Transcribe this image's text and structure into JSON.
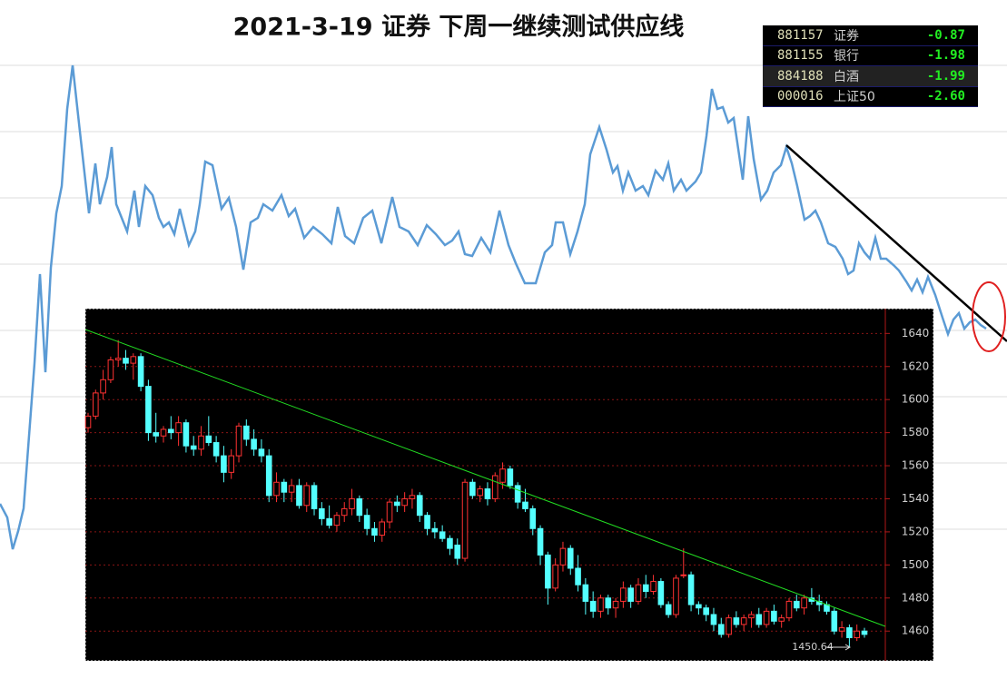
{
  "chart_data": [
    {
      "type": "line",
      "title": "2021-3-19 证券  下周一继续测试供应线",
      "color": "#5b9bd5",
      "xlim": [
        0,
        1109
      ],
      "ylim": [
        0,
        748
      ],
      "x": [
        0,
        8,
        14,
        20,
        26,
        32,
        38,
        44,
        50,
        56,
        62,
        68,
        74,
        80,
        88,
        98,
        105,
        110,
        118,
        123,
        128,
        140,
        148,
        153,
        160,
        168,
        175,
        180,
        186,
        192,
        198,
        208,
        215,
        220,
        226,
        234,
        244,
        252,
        260,
        268,
        276,
        284,
        290,
        300,
        310,
        318,
        325,
        335,
        345,
        355,
        365,
        372,
        380,
        390,
        400,
        410,
        420,
        432,
        440,
        450,
        460,
        470,
        480,
        490,
        498,
        505,
        512,
        520,
        530,
        540,
        550,
        560,
        568,
        578,
        590,
        600,
        608,
        612,
        620,
        628,
        636,
        644,
        650,
        660,
        668,
        675,
        680,
        686,
        692,
        700,
        708,
        714,
        722,
        730,
        736,
        742,
        750,
        756,
        766,
        772,
        778,
        784,
        790,
        796,
        802,
        808,
        818,
        824,
        830,
        838,
        845,
        852,
        860,
        866,
        872,
        878,
        886,
        892,
        898,
        904,
        912,
        920,
        928,
        934,
        940,
        946,
        952,
        958,
        964,
        970,
        976,
        984,
        990,
        998,
        1004,
        1010,
        1016,
        1022,
        1030,
        1038,
        1044,
        1050,
        1056,
        1062,
        1068,
        1074,
        1080,
        1086
      ],
      "values": [
        193,
        178,
        143,
        163,
        188,
        268,
        348,
        446,
        338,
        453,
        513,
        543,
        628,
        676,
        603,
        513,
        568,
        523,
        553,
        586,
        523,
        493,
        538,
        498,
        543,
        533,
        508,
        498,
        503,
        490,
        518,
        478,
        493,
        523,
        570,
        566,
        518,
        530,
        498,
        451,
        503,
        508,
        523,
        516,
        533,
        510,
        518,
        486,
        498,
        490,
        480,
        520,
        488,
        480,
        508,
        516,
        480,
        531,
        498,
        493,
        478,
        500,
        490,
        478,
        483,
        493,
        468,
        466,
        486,
        470,
        516,
        478,
        458,
        436,
        436,
        470,
        478,
        503,
        503,
        468,
        493,
        523,
        578,
        608,
        583,
        558,
        565,
        538,
        558,
        538,
        543,
        533,
        560,
        550,
        568,
        538,
        550,
        538,
        548,
        558,
        598,
        650,
        628,
        630,
        613,
        618,
        550,
        620,
        573,
        528,
        538,
        558,
        566,
        586,
        568,
        543,
        506,
        510,
        516,
        503,
        480,
        476,
        463,
        446,
        450,
        480,
        470,
        463,
        486,
        463,
        463,
        456,
        450,
        438,
        428,
        440,
        426,
        443,
        423,
        398,
        380,
        396,
        403,
        386,
        393,
        396,
        390,
        386
      ]
    },
    {
      "type": "candlestick",
      "up_color": "#ff3232",
      "down_color": "#54ffff",
      "ylim": [
        1442,
        1655
      ],
      "yticks": [
        1460,
        1480,
        1500,
        1520,
        1540,
        1560,
        1580,
        1600,
        1620,
        1640
      ],
      "annotations": [
        "1450.64"
      ],
      "open": [
        1583,
        1590,
        1604,
        1612,
        1624,
        1625,
        1622,
        1626,
        1608,
        1580,
        1578,
        1582,
        1580,
        1586,
        1572,
        1570,
        1578,
        1574,
        1566,
        1556,
        1566,
        1584,
        1576,
        1570,
        1566,
        1542,
        1550,
        1544,
        1548,
        1536,
        1548,
        1534,
        1528,
        1524,
        1530,
        1534,
        1540,
        1530,
        1522,
        1518,
        1526,
        1538,
        1536,
        1540,
        1542,
        1530,
        1522,
        1520,
        1516,
        1512,
        1504,
        1550,
        1542,
        1546,
        1540,
        1550,
        1558,
        1548,
        1538,
        1534,
        1522,
        1506,
        1486,
        1500,
        1510,
        1498,
        1488,
        1478,
        1472,
        1480,
        1474,
        1478,
        1486,
        1478,
        1488,
        1484,
        1490,
        1476,
        1470,
        1494,
        1494,
        1476,
        1474,
        1470,
        1464,
        1458,
        1468,
        1464,
        1468,
        1470,
        1464,
        1472,
        1466,
        1468,
        1478,
        1474,
        1480,
        1478,
        1476,
        1472,
        1460,
        1462,
        1456,
        1460
      ],
      "high": [
        1592,
        1606,
        1618,
        1626,
        1636,
        1630,
        1628,
        1628,
        1612,
        1592,
        1584,
        1590,
        1590,
        1588,
        1578,
        1584,
        1590,
        1578,
        1572,
        1570,
        1586,
        1588,
        1582,
        1576,
        1570,
        1556,
        1552,
        1552,
        1552,
        1550,
        1550,
        1538,
        1536,
        1532,
        1538,
        1546,
        1542,
        1534,
        1526,
        1528,
        1540,
        1542,
        1544,
        1546,
        1544,
        1532,
        1526,
        1524,
        1518,
        1516,
        1552,
        1552,
        1548,
        1550,
        1556,
        1562,
        1560,
        1550,
        1546,
        1536,
        1524,
        1508,
        1504,
        1514,
        1512,
        1506,
        1492,
        1484,
        1482,
        1482,
        1480,
        1490,
        1488,
        1492,
        1494,
        1494,
        1492,
        1478,
        1494,
        1510,
        1496,
        1478,
        1476,
        1474,
        1468,
        1470,
        1472,
        1470,
        1472,
        1474,
        1474,
        1476,
        1470,
        1480,
        1482,
        1482,
        1486,
        1482,
        1478,
        1474,
        1466,
        1464,
        1464,
        1462
      ],
      "low": [
        1580,
        1588,
        1600,
        1610,
        1620,
        1618,
        1612,
        1605,
        1575,
        1574,
        1574,
        1576,
        1572,
        1568,
        1566,
        1566,
        1572,
        1562,
        1550,
        1552,
        1562,
        1572,
        1566,
        1562,
        1538,
        1538,
        1538,
        1538,
        1534,
        1532,
        1530,
        1524,
        1522,
        1520,
        1526,
        1530,
        1526,
        1518,
        1514,
        1514,
        1522,
        1532,
        1532,
        1534,
        1526,
        1518,
        1516,
        1514,
        1506,
        1500,
        1502,
        1540,
        1538,
        1536,
        1538,
        1546,
        1546,
        1534,
        1532,
        1518,
        1500,
        1476,
        1484,
        1496,
        1494,
        1484,
        1470,
        1468,
        1468,
        1470,
        1468,
        1474,
        1474,
        1476,
        1480,
        1482,
        1474,
        1468,
        1468,
        1492,
        1472,
        1470,
        1466,
        1460,
        1456,
        1456,
        1462,
        1460,
        1462,
        1462,
        1462,
        1464,
        1462,
        1466,
        1472,
        1470,
        1476,
        1472,
        1470,
        1458,
        1456,
        1450.64,
        1454,
        1456
      ],
      "close": [
        1590,
        1604,
        1612,
        1624,
        1625,
        1622,
        1626,
        1608,
        1580,
        1578,
        1582,
        1580,
        1586,
        1572,
        1570,
        1578,
        1574,
        1566,
        1556,
        1566,
        1584,
        1576,
        1570,
        1566,
        1542,
        1550,
        1544,
        1548,
        1536,
        1548,
        1534,
        1528,
        1524,
        1530,
        1534,
        1540,
        1530,
        1522,
        1518,
        1526,
        1538,
        1536,
        1540,
        1542,
        1530,
        1522,
        1520,
        1516,
        1510,
        1504,
        1550,
        1542,
        1546,
        1540,
        1554,
        1558,
        1548,
        1538,
        1534,
        1522,
        1506,
        1486,
        1500,
        1510,
        1498,
        1488,
        1478,
        1472,
        1480,
        1474,
        1478,
        1486,
        1478,
        1488,
        1484,
        1490,
        1476,
        1470,
        1492,
        1494,
        1476,
        1474,
        1470,
        1464,
        1458,
        1468,
        1464,
        1468,
        1470,
        1464,
        1472,
        1466,
        1468,
        1478,
        1474,
        1480,
        1478,
        1476,
        1472,
        1460,
        1462,
        1456,
        1460,
        1458
      ]
    }
  ],
  "table": {
    "rows": [
      [
        "881157",
        "证券",
        "-0.87"
      ],
      [
        "881155",
        "银行",
        "-1.98"
      ],
      [
        "884188",
        "白酒",
        "-1.99"
      ],
      [
        "000016",
        "上证50",
        "-2.60"
      ]
    ]
  }
}
